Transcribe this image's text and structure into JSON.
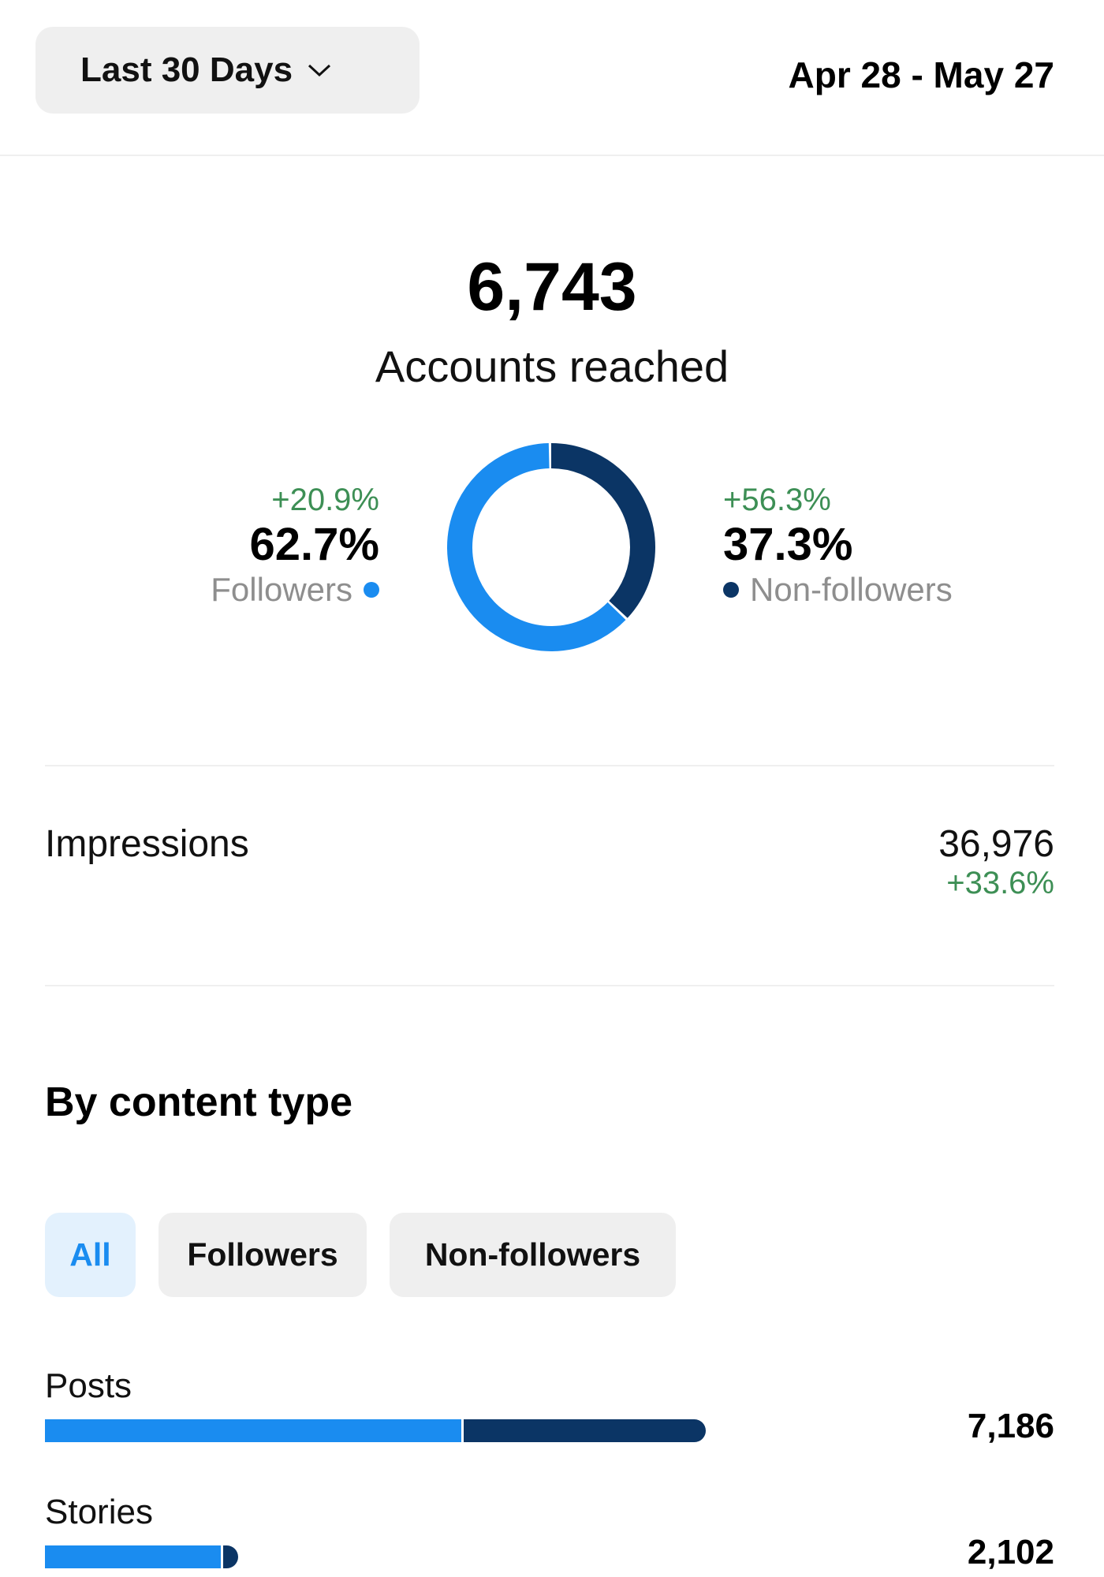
{
  "header": {
    "range_label": "Last 30 Days",
    "date_range": "Apr 28 - May 27"
  },
  "reach": {
    "value": "6,743",
    "label": "Accounts reached"
  },
  "donut": {
    "followers": {
      "change": "+20.9%",
      "percent": "62.7%",
      "label": "Followers",
      "share": 62.7,
      "color": "#1a8cf0"
    },
    "non_followers": {
      "change": "+56.3%",
      "percent": "37.3%",
      "label": "Non-followers",
      "share": 37.3,
      "color": "#0b3565"
    }
  },
  "impressions": {
    "label": "Impressions",
    "value": "36,976",
    "change": "+33.6%"
  },
  "content_type": {
    "title": "By content type",
    "filters": [
      {
        "label": "All",
        "selected": true
      },
      {
        "label": "Followers",
        "selected": false
      },
      {
        "label": "Non-followers",
        "selected": false
      }
    ],
    "rows": [
      {
        "label": "Posts",
        "value": "7,186",
        "total": 7186,
        "followers_share": 0.63
      },
      {
        "label": "Stories",
        "value": "2,102",
        "total": 2102,
        "followers_share": 0.91
      }
    ]
  }
}
